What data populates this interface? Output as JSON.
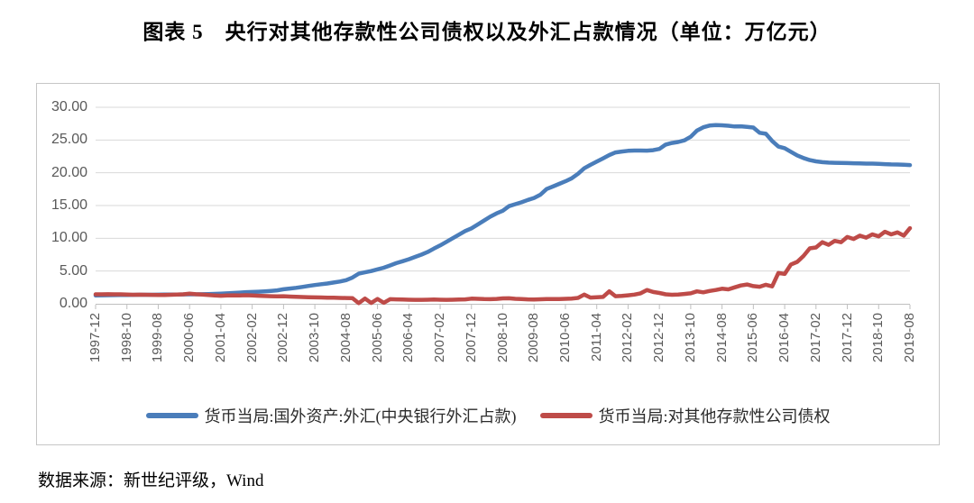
{
  "title": "图表 5　央行对其他存款性公司债权以及外汇占款情况（单位：万亿元）",
  "source_note": "数据来源：新世纪评级，Wind",
  "chart_data": {
    "type": "line",
    "title": "央行对其他存款性公司债权以及外汇占款情况",
    "unit": "万亿元",
    "grid": true,
    "legend_position": "bottom",
    "ylim": [
      0,
      30
    ],
    "ytick_step": 5,
    "ytick_labels": [
      "30.00",
      "25.00",
      "20.00",
      "15.00",
      "10.00",
      "5.00",
      "0.00"
    ],
    "x_start": "1997-12",
    "x_end": "2019-08",
    "x_point_interval_months": 2,
    "xtick_interval_months": 10,
    "xtick_labels": [
      "1997-12",
      "1998-10",
      "1999-08",
      "2000-06",
      "2001-04",
      "2002-02",
      "2002-12",
      "2003-10",
      "2004-08",
      "2005-06",
      "2006-04",
      "2007-02",
      "2007-12",
      "2008-10",
      "2009-08",
      "2010-06",
      "2011-04",
      "2012-02",
      "2012-12",
      "2013-10",
      "2014-08",
      "2015-06",
      "2016-04",
      "2017-02",
      "2017-12",
      "2018-10",
      "2019-08"
    ],
    "colors": {
      "series_blue": "#4A7DBA",
      "series_red": "#BE4B48",
      "gridline": "#d9d9d9",
      "axis_line": "#bfbfbf",
      "tick_text": "#595959"
    },
    "series": [
      {
        "name": "货币当局:国外资产:外汇(中央银行外汇占款)",
        "color_key": "series_blue",
        "values": [
          1.28,
          1.3,
          1.31,
          1.32,
          1.33,
          1.34,
          1.36,
          1.37,
          1.38,
          1.38,
          1.39,
          1.4,
          1.41,
          1.42,
          1.43,
          1.44,
          1.45,
          1.46,
          1.48,
          1.52,
          1.56,
          1.6,
          1.65,
          1.71,
          1.77,
          1.8,
          1.84,
          1.9,
          1.97,
          2.05,
          2.21,
          2.32,
          2.44,
          2.58,
          2.72,
          2.86,
          2.98,
          3.1,
          3.25,
          3.4,
          3.6,
          4.0,
          4.59,
          4.8,
          5.0,
          5.25,
          5.5,
          5.85,
          6.21,
          6.5,
          6.8,
          7.15,
          7.5,
          7.9,
          8.42,
          8.9,
          9.45,
          10.0,
          10.55,
          11.1,
          11.52,
          12.1,
          12.7,
          13.3,
          13.8,
          14.2,
          14.91,
          15.2,
          15.5,
          15.85,
          16.15,
          16.65,
          17.52,
          17.9,
          18.3,
          18.7,
          19.15,
          19.85,
          20.68,
          21.2,
          21.7,
          22.2,
          22.7,
          23.1,
          23.24,
          23.35,
          23.4,
          23.4,
          23.38,
          23.45,
          23.64,
          24.3,
          24.55,
          24.7,
          24.95,
          25.5,
          26.43,
          26.95,
          27.2,
          27.28,
          27.25,
          27.18,
          27.07,
          27.1,
          27.0,
          26.9,
          26.1,
          25.95,
          24.85,
          24.0,
          23.75,
          23.2,
          22.65,
          22.25,
          21.94,
          21.75,
          21.62,
          21.55,
          21.52,
          21.5,
          21.48,
          21.45,
          21.42,
          21.4,
          21.4,
          21.36,
          21.32,
          21.28,
          21.26,
          21.22,
          21.18
        ]
      },
      {
        "name": "货币当局:对其他存款性公司债权",
        "color_key": "series_red",
        "values": [
          1.44,
          1.45,
          1.46,
          1.45,
          1.44,
          1.42,
          1.37,
          1.39,
          1.37,
          1.36,
          1.35,
          1.34,
          1.37,
          1.4,
          1.45,
          1.54,
          1.46,
          1.4,
          1.35,
          1.28,
          1.22,
          1.26,
          1.3,
          1.28,
          1.31,
          1.26,
          1.22,
          1.18,
          1.16,
          1.13,
          1.15,
          1.1,
          1.06,
          1.03,
          1.0,
          0.98,
          0.96,
          0.94,
          0.92,
          0.9,
          0.88,
          0.85,
          0.1,
          0.8,
          0.12,
          0.75,
          0.15,
          0.7,
          0.68,
          0.64,
          0.62,
          0.6,
          0.6,
          0.62,
          0.64,
          0.62,
          0.6,
          0.62,
          0.64,
          0.68,
          0.79,
          0.76,
          0.72,
          0.7,
          0.75,
          0.82,
          0.84,
          0.76,
          0.71,
          0.68,
          0.66,
          0.69,
          0.72,
          0.71,
          0.73,
          0.76,
          0.8,
          0.9,
          1.4,
          0.95,
          1.0,
          1.05,
          1.9,
          1.15,
          1.2,
          1.3,
          1.4,
          1.6,
          2.1,
          1.8,
          1.65,
          1.45,
          1.38,
          1.42,
          1.5,
          1.6,
          1.9,
          1.75,
          1.95,
          2.1,
          2.3,
          2.2,
          2.5,
          2.8,
          2.95,
          2.7,
          2.6,
          2.9,
          2.66,
          4.7,
          4.55,
          6.0,
          6.4,
          7.3,
          8.47,
          8.6,
          9.4,
          9.0,
          9.6,
          9.4,
          10.2,
          9.9,
          10.4,
          10.1,
          10.6,
          10.3,
          11.0,
          10.6,
          10.9,
          10.4,
          11.55
        ]
      }
    ]
  }
}
